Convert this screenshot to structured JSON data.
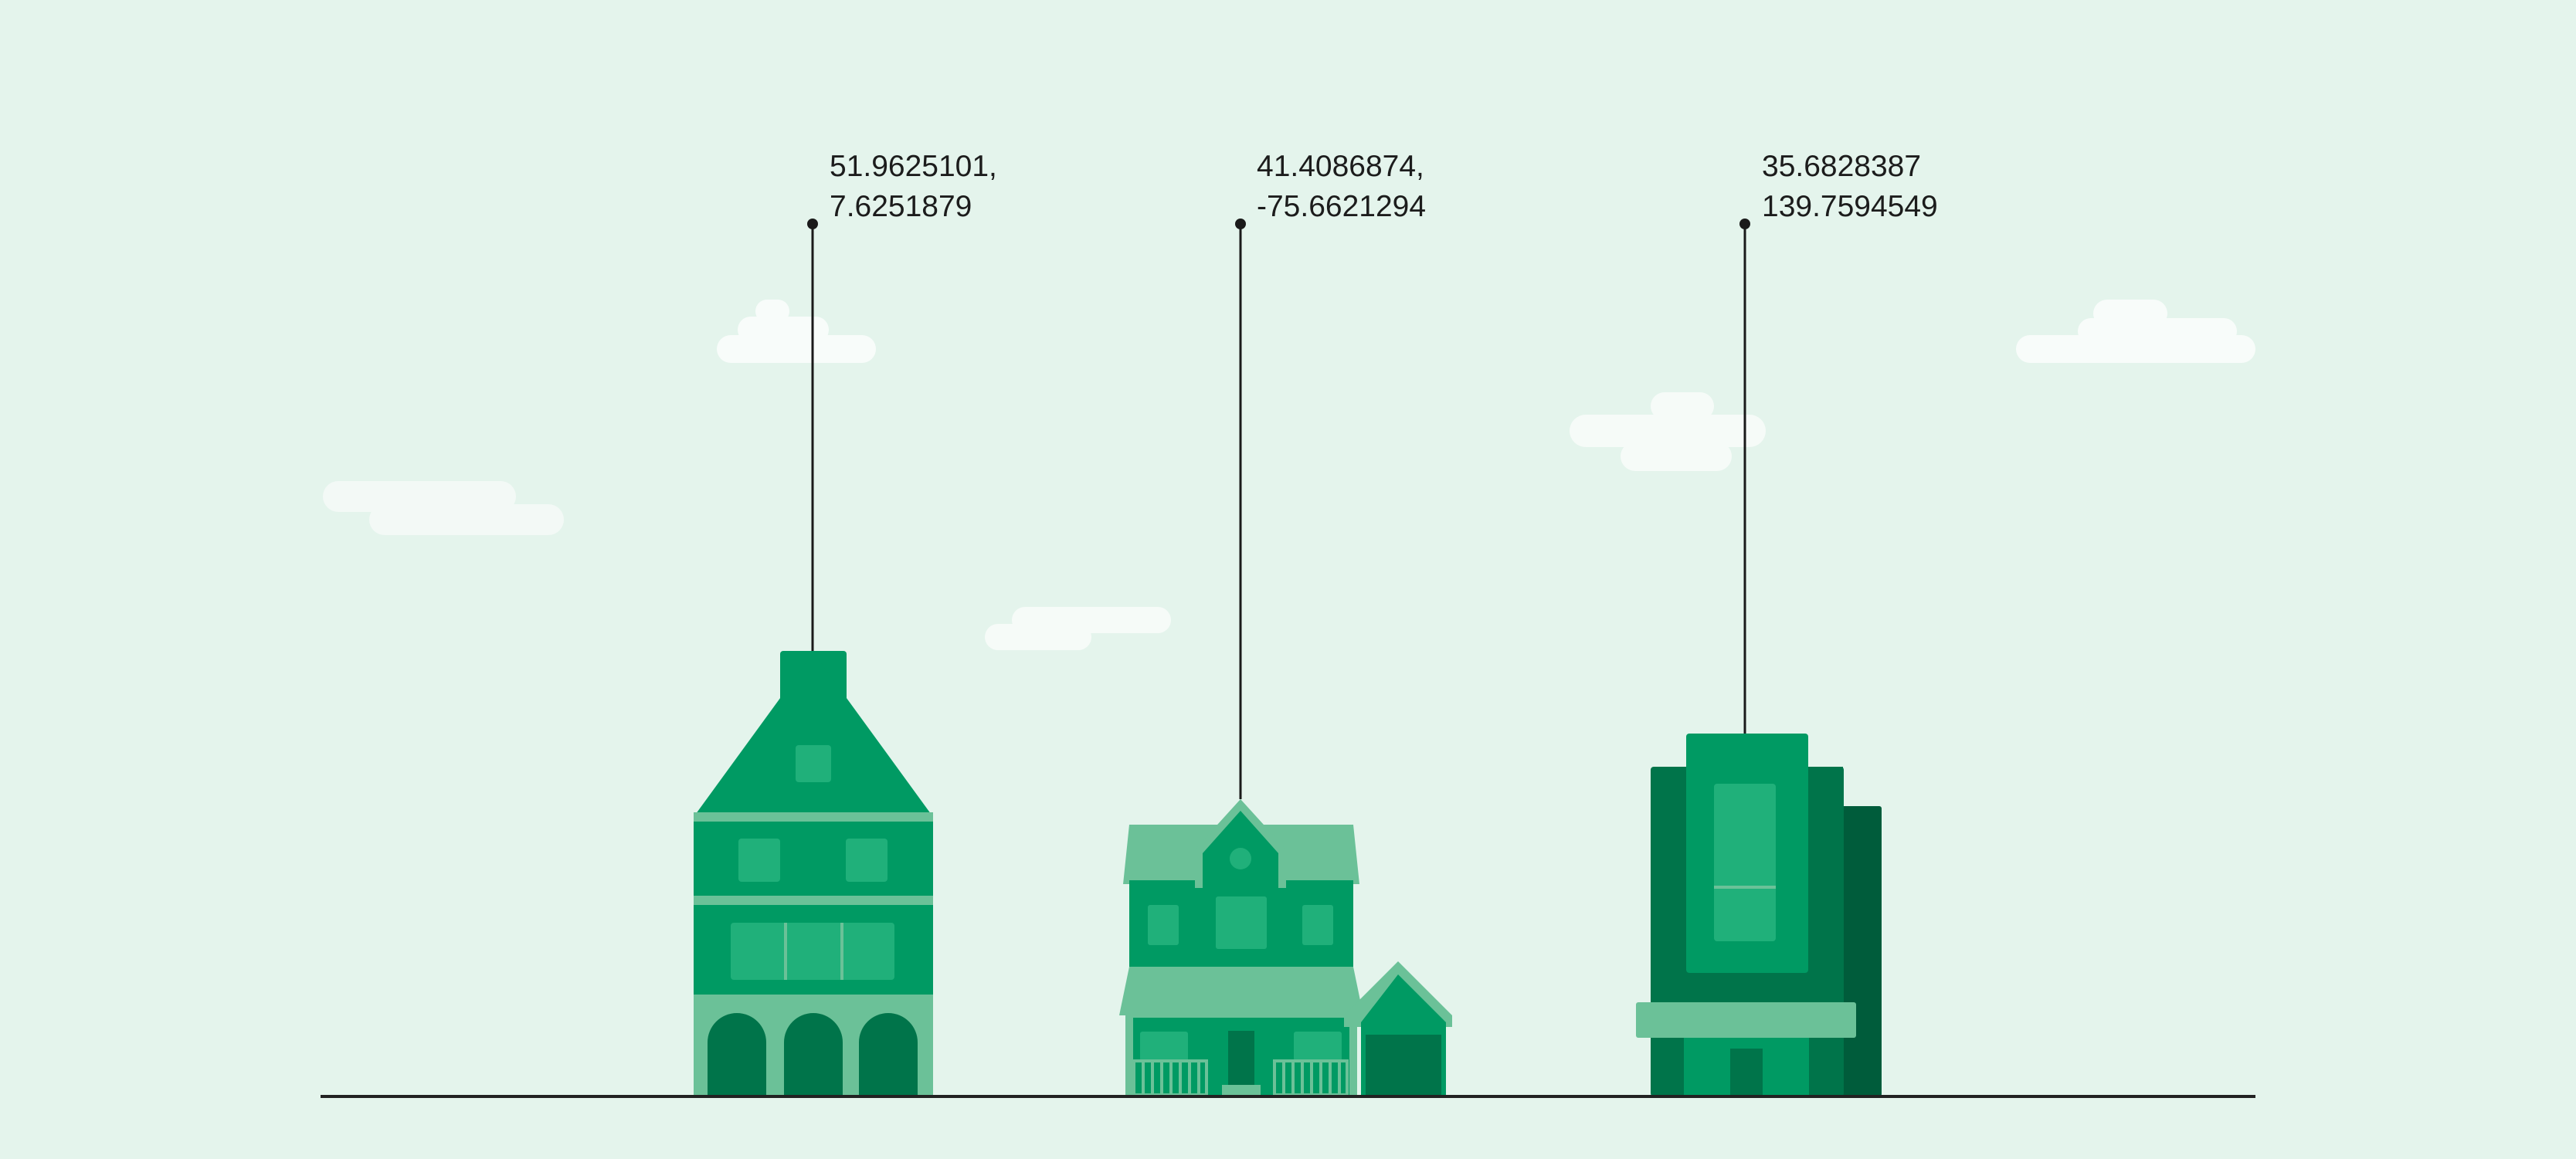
{
  "colors": {
    "background": "#e4f4ec",
    "cloud": "#f6fbf8",
    "ground_line": "#222222",
    "pin": "#1a1a1a",
    "green_primary": "#009a63",
    "green_dark": "#00744a",
    "green_darker": "#005c3b",
    "green_light": "#6bc198",
    "green_window": "#20b07a"
  },
  "locations": [
    {
      "name": "tall-gabled-house",
      "lat_text": "51.9625101,",
      "lng_text": "7.6251879"
    },
    {
      "name": "suburban-house",
      "lat_text": "41.4086874,",
      "lng_text": "-75.6621294"
    },
    {
      "name": "office-building",
      "lat_text": "35.6828387",
      "lng_text": "139.7594549"
    }
  ]
}
